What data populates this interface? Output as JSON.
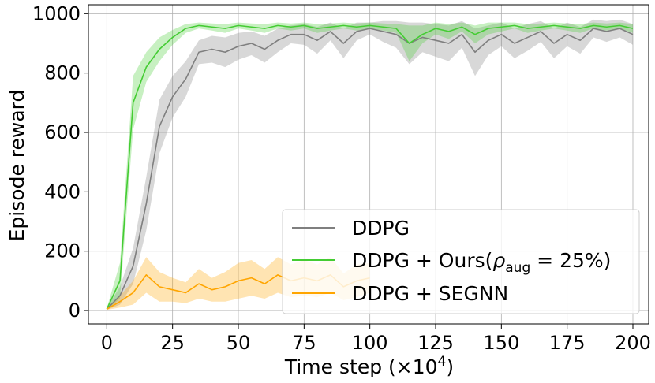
{
  "chart_data": {
    "type": "line",
    "xlabel_main": "Time step (×10",
    "xlabel_exp": "4",
    "xlabel_tail": ")",
    "ylabel": "Episode reward",
    "xlim": [
      -7,
      206
    ],
    "ylim": [
      -45,
      1030
    ],
    "xticks": [
      0,
      25,
      50,
      75,
      100,
      125,
      150,
      175,
      200
    ],
    "yticks": [
      0,
      200,
      400,
      600,
      800,
      1000
    ],
    "grid": true,
    "legend_position": "lower-right",
    "legend": {
      "ddpg": "DDPG",
      "ours_prefix": "DDPG + Ours(",
      "ours_rho": "ρ",
      "ours_sub": "aug",
      "ours_suffix": " = 25%)",
      "segnn": "DDPG + SEGNN"
    },
    "series": [
      {
        "name": "DDPG",
        "color": "#7f7f7f",
        "x": [
          0,
          5,
          10,
          15,
          20,
          25,
          30,
          35,
          40,
          45,
          50,
          55,
          60,
          65,
          70,
          75,
          80,
          85,
          90,
          95,
          100,
          105,
          110,
          115,
          120,
          125,
          130,
          135,
          140,
          145,
          150,
          155,
          160,
          165,
          170,
          175,
          180,
          185,
          190,
          195,
          200
        ],
        "values": [
          5,
          50,
          150,
          360,
          620,
          720,
          780,
          870,
          880,
          870,
          890,
          900,
          880,
          910,
          930,
          930,
          910,
          940,
          900,
          940,
          950,
          940,
          930,
          900,
          920,
          910,
          900,
          930,
          870,
          910,
          930,
          900,
          920,
          940,
          900,
          930,
          910,
          950,
          940,
          950,
          930
        ],
        "band": [
          3,
          30,
          60,
          90,
          90,
          70,
          60,
          40,
          45,
          50,
          45,
          40,
          45,
          40,
          30,
          35,
          45,
          30,
          50,
          30,
          20,
          35,
          45,
          70,
          50,
          55,
          60,
          45,
          80,
          50,
          40,
          50,
          45,
          35,
          50,
          40,
          45,
          30,
          35,
          30,
          35
        ]
      },
      {
        "name": "DDPG + Ours(ρaug = 25%)",
        "color": "#44cc33",
        "x": [
          0,
          5,
          10,
          15,
          20,
          25,
          30,
          35,
          40,
          45,
          50,
          55,
          60,
          65,
          70,
          75,
          80,
          85,
          90,
          95,
          100,
          105,
          110,
          115,
          120,
          125,
          130,
          135,
          140,
          145,
          150,
          155,
          160,
          165,
          170,
          175,
          180,
          185,
          190,
          195,
          200
        ],
        "values": [
          5,
          100,
          700,
          820,
          880,
          920,
          950,
          960,
          955,
          950,
          960,
          955,
          950,
          960,
          955,
          960,
          950,
          955,
          960,
          955,
          960,
          955,
          950,
          900,
          930,
          950,
          940,
          955,
          930,
          950,
          955,
          960,
          950,
          955,
          960,
          955,
          950,
          960,
          955,
          960,
          950
        ],
        "band": [
          3,
          60,
          90,
          50,
          40,
          25,
          15,
          10,
          12,
          15,
          10,
          12,
          15,
          10,
          12,
          10,
          15,
          12,
          10,
          12,
          10,
          12,
          15,
          60,
          30,
          20,
          25,
          15,
          30,
          20,
          15,
          10,
          15,
          12,
          10,
          12,
          15,
          10,
          12,
          10,
          15
        ]
      },
      {
        "name": "DDPG + SEGNN",
        "color": "#ffa500",
        "x": [
          0,
          5,
          10,
          15,
          20,
          25,
          30,
          35,
          40,
          45,
          50,
          55,
          60,
          65,
          70,
          75,
          80,
          85,
          90,
          95,
          100
        ],
        "values": [
          5,
          30,
          60,
          120,
          80,
          70,
          60,
          90,
          70,
          80,
          100,
          110,
          90,
          120,
          100,
          110,
          100,
          120,
          80,
          100,
          110
        ],
        "band": [
          3,
          20,
          40,
          60,
          50,
          40,
          35,
          50,
          40,
          50,
          60,
          60,
          50,
          60,
          55,
          60,
          55,
          60,
          45,
          55,
          50
        ]
      }
    ]
  }
}
